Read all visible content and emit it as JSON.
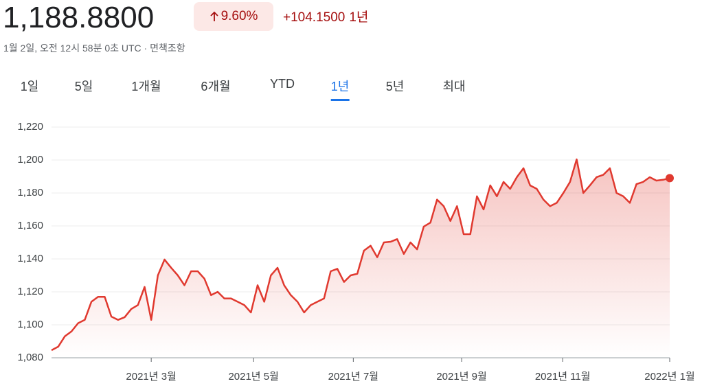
{
  "header": {
    "price": "1,188.8800",
    "change_percent": "9.60%",
    "change_value": "+104.1500",
    "period": "1년",
    "subtitle": "1월 2일, 오전 12시 58분 0초 UTC · 면책조항"
  },
  "tabs": {
    "items": [
      "1일",
      "5일",
      "1개월",
      "6개월",
      "YTD",
      "1년",
      "5년",
      "최대"
    ],
    "active": 5
  },
  "chart_data": {
    "type": "line",
    "series": [
      {
        "color": "#e0392f",
        "values": [
          1084.6,
          1086.7,
          1093,
          1096,
          1101,
          1103,
          1114,
          1117,
          1117,
          1105,
          1103,
          1104.6,
          1109.6,
          1112,
          1123,
          1103,
          1130,
          1139.6,
          1134.6,
          1130,
          1124,
          1132.5,
          1132.5,
          1128,
          1118,
          1120,
          1116,
          1116,
          1114,
          1112,
          1107.5,
          1124,
          1114,
          1130,
          1134.6,
          1124,
          1118,
          1114,
          1107.5,
          1112,
          1114,
          1116,
          1132.5,
          1134,
          1126,
          1130,
          1131,
          1145,
          1148,
          1141,
          1150,
          1150.4,
          1152,
          1143,
          1150,
          1145.8,
          1159.6,
          1162,
          1176,
          1172,
          1163,
          1172,
          1155,
          1155,
          1178,
          1170,
          1184.6,
          1178,
          1186.7,
          1182.5,
          1189.6,
          1195,
          1184.6,
          1182.5,
          1176,
          1172,
          1174,
          1180,
          1186.7,
          1200.4,
          1180,
          1184.6,
          1189.6,
          1191,
          1195,
          1180,
          1178,
          1174,
          1185.4,
          1186.7,
          1189.6,
          1187.5,
          1188,
          1189
        ]
      }
    ],
    "xlim": [
      0,
      93
    ],
    "xticks": [
      {
        "value": 15,
        "label": "2021년 3월"
      },
      {
        "value": 30.4,
        "label": "2021년 5월"
      },
      {
        "value": 45.4,
        "label": "2021년 7월"
      },
      {
        "value": 61.7,
        "label": "2021년 9월"
      },
      {
        "value": 76.9,
        "label": "2021년 11월"
      },
      {
        "value": 93,
        "label": "2022년 1월"
      }
    ],
    "ylim": [
      1080,
      1220
    ],
    "yticks": [
      {
        "value": 1080,
        "label": "1,080"
      },
      {
        "value": 1100,
        "label": "1,100"
      },
      {
        "value": 1120,
        "label": "1,120"
      },
      {
        "value": 1140,
        "label": "1,140"
      },
      {
        "value": 1160,
        "label": "1,160"
      },
      {
        "value": 1180,
        "label": "1,180"
      },
      {
        "value": 1200,
        "label": "1,200"
      },
      {
        "value": 1220,
        "label": "1,220"
      }
    ],
    "grid": true
  }
}
